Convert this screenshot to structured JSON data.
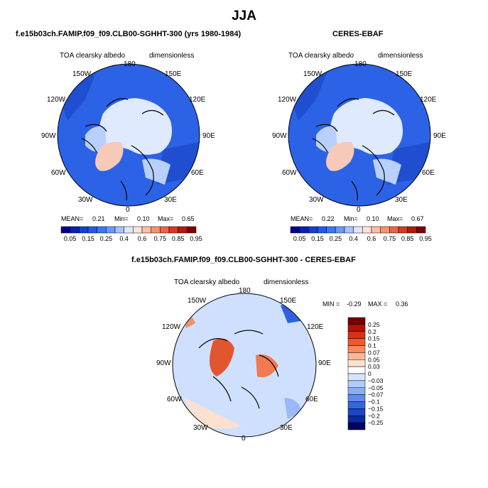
{
  "title": "JJA",
  "colors": {
    "ocean": "#2c62e6",
    "ocean_dark": "#1f4fd0",
    "ice_light": "#dfeaff",
    "ice_mid": "#b9d0ff",
    "greenland": "#f7c9b8",
    "diff_bg": "#cfe0ff"
  },
  "panels": [
    {
      "header": "f.e15b03ch.FAMIP.f09_f09.CLB00-SGHHT-300 (yrs 1980-1984)",
      "left_label": "TOA clearsky albedo",
      "right_label": "dimensionless",
      "lon_labels": {
        "top": "180",
        "t_l": "150W",
        "t_r": "150E",
        "u_l": "120W",
        "u_r": "120E",
        "m_l": "90W",
        "m_r": "90E",
        "l_l": "60W",
        "l_r": "60E",
        "b_l": "30W",
        "b_r": "30E",
        "bottom": "0"
      },
      "stats": {
        "mean_label": "MEAN=",
        "mean": "0.21",
        "min_label": "Min=",
        "min": "0.10",
        "max_label": "Max=",
        "max": "0.65"
      }
    },
    {
      "header": "CERES-EBAF",
      "left_label": "TOA clearsky albedo",
      "right_label": "dimensionless",
      "lon_labels": {
        "top": "180",
        "t_l": "150W",
        "t_r": "150E",
        "u_l": "120W",
        "u_r": "120E",
        "m_l": "90W",
        "m_r": "90E",
        "l_l": "60W",
        "l_r": "60E",
        "b_l": "30W",
        "b_r": "30E",
        "bottom": "0"
      },
      "stats": {
        "mean_label": "MEAN=",
        "mean": "0.22",
        "min_label": "Min=",
        "min": "0.10",
        "max_label": "Max=",
        "max": "0.67"
      }
    }
  ],
  "colorbar_top": {
    "colors": [
      "#00008f",
      "#0a1fb3",
      "#1240d6",
      "#2058ea",
      "#3a78f2",
      "#6a98f7",
      "#a7c3fb",
      "#dde8ff",
      "#fde4d6",
      "#fbbfa4",
      "#f69271",
      "#ed6446",
      "#d9381f",
      "#b21a0c",
      "#7f0000"
    ],
    "labels": [
      "0.05",
      "0.15",
      "0.25",
      "0.4",
      "0.6",
      "0.75",
      "0.85",
      "0.95"
    ]
  },
  "diff": {
    "header": "f.e15b03ch.FAMIP.f09_f09.CLB00-SGHHT-300 - CERES-EBAF",
    "left_label": "TOA clearsky albedo",
    "right_label": "dimensionless",
    "lon_labels": {
      "top": "180",
      "t_l": "150W",
      "t_r": "150E",
      "u_l": "120W",
      "u_r": "120E",
      "m_l": "90W",
      "m_r": "90E",
      "l_l": "60W",
      "l_r": "60E",
      "b_l": "30W",
      "b_r": "30E",
      "bottom": "0"
    },
    "min_label": "MIN =",
    "min": "-0.29",
    "max_label": "MAX =",
    "max": "0.36"
  },
  "colorbar_diff": {
    "colors": [
      "#7a0000",
      "#b01404",
      "#d7330f",
      "#ef5a2c",
      "#f98a5b",
      "#fcb896",
      "#fde0cf",
      "#ffffff",
      "#d6e4ff",
      "#b1cbfd",
      "#8aadf7",
      "#5f8bf0",
      "#3466e0",
      "#1b45c4",
      "#082a9d",
      "#00005f"
    ],
    "labels": [
      "0.25",
      "0.2",
      "0.15",
      "0.1",
      "0.07",
      "0.05",
      "0.03",
      "0",
      "−0.03",
      "−0.05",
      "−0.07",
      "−0.1",
      "−0.15",
      "−0.2",
      "−0.25"
    ]
  },
  "chart_data": {
    "type": "heatmap",
    "title": "JJA",
    "variable": "TOA clearsky albedo",
    "units": "dimensionless",
    "projection": "north polar stereographic",
    "maps": [
      {
        "name": "f.e15b03ch.FAMIP.f09_f09.CLB00-SGHHT-300 (yrs 1980-1984)",
        "mean": 0.21,
        "min": 0.1,
        "max": 0.65
      },
      {
        "name": "CERES-EBAF",
        "mean": 0.22,
        "min": 0.1,
        "max": 0.67
      },
      {
        "name": "f.e15b03ch.FAMIP.f09_f09.CLB00-SGHHT-300 - CERES-EBAF",
        "min": -0.29,
        "max": 0.36
      }
    ],
    "levels_abs": [
      0.05,
      0.1,
      0.15,
      0.2,
      0.25,
      0.3,
      0.4,
      0.5,
      0.6,
      0.7,
      0.75,
      0.8,
      0.85,
      0.9,
      0.95
    ],
    "levels_diff": [
      -0.25,
      -0.2,
      -0.15,
      -0.1,
      -0.07,
      -0.05,
      -0.03,
      0,
      0.03,
      0.05,
      0.07,
      0.1,
      0.15,
      0.2,
      0.25
    ]
  }
}
